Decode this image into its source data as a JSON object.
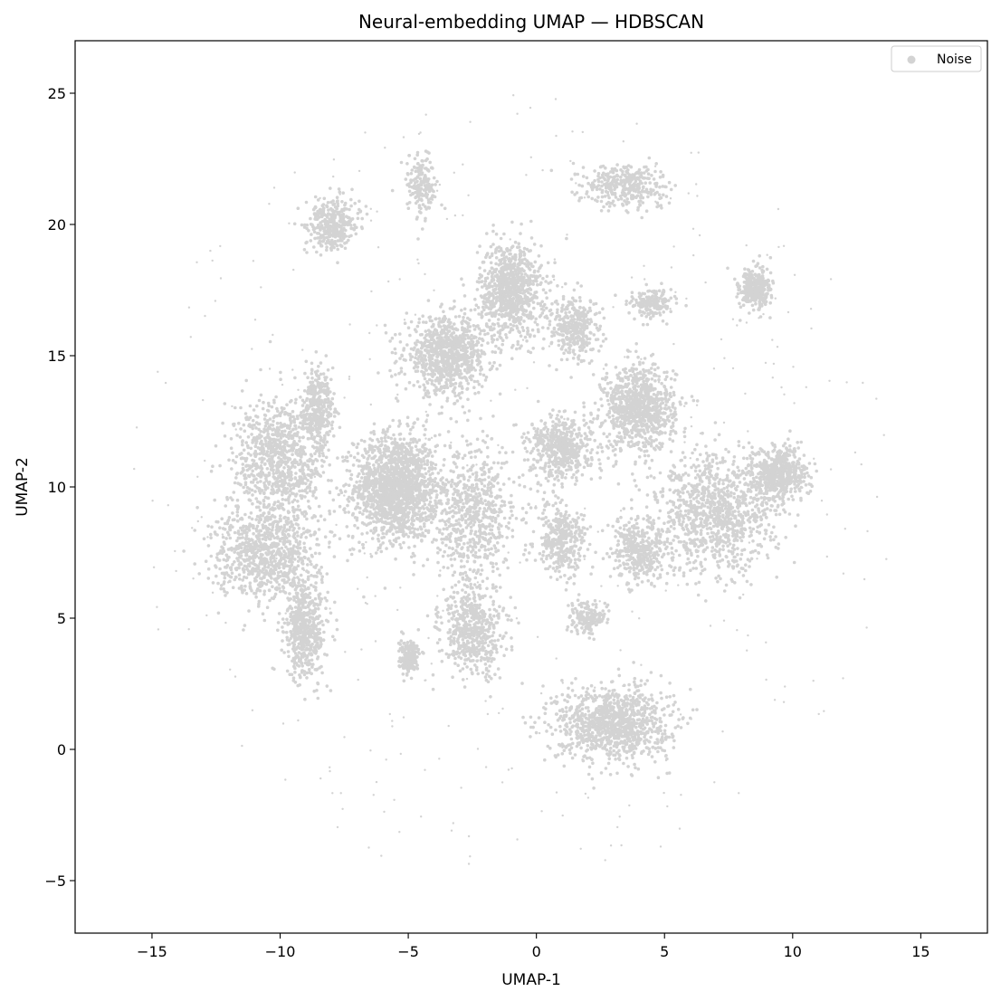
{
  "chart_data": {
    "type": "scatter",
    "title": "Neural-embedding UMAP — HDBSCAN",
    "xlabel": "UMAP-1",
    "ylabel": "UMAP-2",
    "xlim": [
      -18.0,
      17.6
    ],
    "ylim": [
      -7.0,
      27.0
    ],
    "xticks": [
      -15,
      -10,
      -5,
      0,
      5,
      10,
      15
    ],
    "xtick_labels": [
      "−15",
      "−10",
      "−5",
      "0",
      "5",
      "10",
      "15"
    ],
    "yticks": [
      -5,
      0,
      5,
      10,
      15,
      20,
      25
    ],
    "ytick_labels": [
      "−5",
      "0",
      "5",
      "10",
      "15",
      "20",
      "25"
    ],
    "legend": {
      "location": "upper right",
      "entries": [
        {
          "label": "Noise",
          "color": "#d3d3d3"
        }
      ]
    },
    "series": [
      {
        "name": "Noise",
        "color": "#d3d3d3",
        "point_count_estimate": "very large (tens of thousands)",
        "dense_regions": [
          {
            "label": "central dense cluster",
            "center": [
              -5.5,
              10.0
            ],
            "spread": [
              0.8,
              1.0
            ],
            "weight": 9
          },
          {
            "label": "upper-center cluster",
            "center": [
              -1.0,
              17.5
            ],
            "spread": [
              0.6,
              0.9
            ],
            "weight": 5
          },
          {
            "label": "cluster near (-3.5, 15)",
            "center": [
              -3.5,
              15.0
            ],
            "spread": [
              0.8,
              0.7
            ],
            "weight": 5
          },
          {
            "label": "cluster near (4, 13)",
            "center": [
              4.0,
              13.0
            ],
            "spread": [
              0.7,
              0.8
            ],
            "weight": 5
          },
          {
            "label": "lower cluster near (3, 1)",
            "center": [
              3.0,
              1.0
            ],
            "spread": [
              1.1,
              0.7
            ],
            "weight": 6
          },
          {
            "label": "left-upper arm",
            "center": [
              -10.0,
              11.0
            ],
            "spread": [
              0.9,
              1.2
            ],
            "weight": 5
          },
          {
            "label": "left-lower arm",
            "center": [
              -10.5,
              7.5
            ],
            "spread": [
              1.0,
              0.9
            ],
            "weight": 5
          },
          {
            "label": "left vertical lobe",
            "center": [
              -9.0,
              4.5
            ],
            "spread": [
              0.4,
              0.9
            ],
            "weight": 3
          },
          {
            "label": "right arm",
            "center": [
              7.0,
              9.0
            ],
            "spread": [
              1.2,
              1.1
            ],
            "weight": 6
          },
          {
            "label": "right lobe",
            "center": [
              9.5,
              10.5
            ],
            "spread": [
              0.5,
              0.5
            ],
            "weight": 3
          },
          {
            "label": "center-right cluster",
            "center": [
              1.0,
              11.5
            ],
            "spread": [
              0.6,
              0.6
            ],
            "weight": 3
          },
          {
            "label": "center-left cluster",
            "center": [
              -2.5,
              9.0
            ],
            "spread": [
              0.9,
              1.3
            ],
            "weight": 4
          },
          {
            "label": "lower-middle cluster",
            "center": [
              -2.5,
              4.5
            ],
            "spread": [
              0.6,
              0.8
            ],
            "weight": 3
          },
          {
            "label": "upper-left cluster",
            "center": [
              -8.0,
              20.0
            ],
            "spread": [
              0.5,
              0.5
            ],
            "weight": 2
          },
          {
            "label": "upper-right cluster",
            "center": [
              3.5,
              21.5
            ],
            "spread": [
              0.8,
              0.4
            ],
            "weight": 2
          },
          {
            "label": "right upper cluster",
            "center": [
              8.5,
              17.5
            ],
            "spread": [
              0.3,
              0.4
            ],
            "weight": 2
          },
          {
            "label": "small upper cluster",
            "center": [
              -4.5,
              21.5
            ],
            "spread": [
              0.3,
              0.6
            ],
            "weight": 1
          },
          {
            "label": "cluster near (1.5, 16)",
            "center": [
              1.5,
              16.0
            ],
            "spread": [
              0.5,
              0.6
            ],
            "weight": 2
          },
          {
            "label": "small cluster near (4.5, 17)",
            "center": [
              4.5,
              17.0
            ],
            "spread": [
              0.4,
              0.3
            ],
            "weight": 1
          },
          {
            "label": "cluster near (1, 8)",
            "center": [
              1.0,
              8.0
            ],
            "spread": [
              0.5,
              0.7
            ],
            "weight": 2
          },
          {
            "label": "cluster near (4, 7.5)",
            "center": [
              4.0,
              7.5
            ],
            "spread": [
              0.5,
              0.6
            ],
            "weight": 2
          },
          {
            "label": "cluster near (-8.5, 13)",
            "center": [
              -8.5,
              13.0
            ],
            "spread": [
              0.3,
              0.7
            ],
            "weight": 2
          },
          {
            "label": "small cluster near (-5, 3.5)",
            "center": [
              -5.0,
              3.5
            ],
            "spread": [
              0.2,
              0.3
            ],
            "weight": 1
          },
          {
            "label": "small cluster near (2, 5)",
            "center": [
              2.0,
              5.0
            ],
            "spread": [
              0.3,
              0.3
            ],
            "weight": 1
          }
        ],
        "sparse_range": {
          "x": [
            -16.5,
            16.0
          ],
          "y": [
            -5.6,
            25.5
          ]
        }
      }
    ]
  }
}
